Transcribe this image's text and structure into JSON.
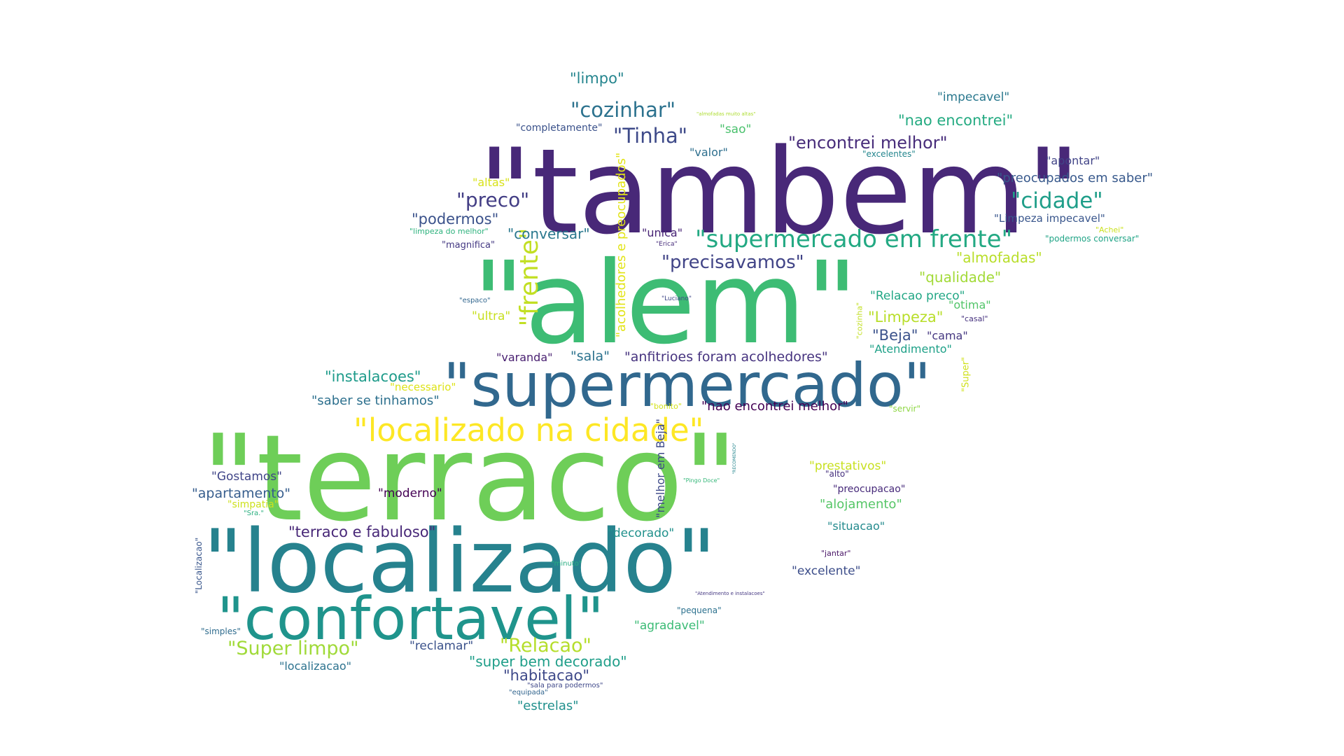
{
  "palette": {
    "dark_purple": "#482878",
    "indigo": "#3e4a89",
    "blue": "#31688e",
    "teal": "#26828e",
    "green_teal": "#1f9e89",
    "green": "#35b779",
    "light_green": "#6ece58",
    "yellow_green": "#b5de2b",
    "yellow": "#fde725"
  },
  "words": [
    {
      "text": "\"tambem\"",
      "color": "#482878"
    },
    {
      "text": "\"alem\"",
      "color": "#3dbc74"
    },
    {
      "text": "\"terraco\"",
      "color": "#6ece58"
    },
    {
      "text": "\"localizado\"",
      "color": "#26828e"
    },
    {
      "text": "\"supermercado\"",
      "color": "#31688e"
    },
    {
      "text": "\"confortavel\"",
      "color": "#1f948c"
    },
    {
      "text": "\"localizado na cidade\"",
      "color": "#fde725"
    },
    {
      "text": "\"supermercado em frente\"",
      "color": "#23a983"
    },
    {
      "text": "\"frente\"",
      "color": "#c2df23"
    },
    {
      "text": "\"cozinhar\"",
      "color": "#2c728e"
    },
    {
      "text": "\"Tinha\"",
      "color": "#3e4a89"
    },
    {
      "text": "\"encontrei melhor\"",
      "color": "#472c7a"
    },
    {
      "text": "\"cidade\"",
      "color": "#1f9e89"
    },
    {
      "text": "\"preco\"",
      "color": "#433e85"
    },
    {
      "text": "\"precisavamos\"",
      "color": "#414487"
    },
    {
      "text": "\"Relacao\"",
      "color": "#b5de2b"
    },
    {
      "text": "\"Super limpo\"",
      "color": "#a0da39"
    },
    {
      "text": "\"limpo\"",
      "color": "#25858e"
    },
    {
      "text": "\"impecavel\"",
      "color": "#2a788e"
    },
    {
      "text": "\"nao encontrei\"",
      "color": "#25ab82"
    },
    {
      "text": "\"completamente\"",
      "color": "#3b528b"
    },
    {
      "text": "\"almofadas muito altas\"",
      "color": "#addc30"
    },
    {
      "text": "\"sao\"",
      "color": "#4ac16d"
    },
    {
      "text": "\"valor\"",
      "color": "#2e6f8e"
    },
    {
      "text": "\"excelentes\"",
      "color": "#24868e"
    },
    {
      "text": "\"apontar\"",
      "color": "#414487"
    },
    {
      "text": "\"preocupados em saber\"",
      "color": "#38598c"
    },
    {
      "text": "\"altas\"",
      "color": "#d8e219"
    },
    {
      "text": "\"acolhedores e preocupados\"",
      "color": "#e2e418"
    },
    {
      "text": "\"podermos\"",
      "color": "#3b528b"
    },
    {
      "text": "\"Limpeza impecavel\"",
      "color": "#39568c"
    },
    {
      "text": "\"limpeza do melhor\"",
      "color": "#2db27d"
    },
    {
      "text": "\"conversar\"",
      "color": "#2a788e"
    },
    {
      "text": "\"unica\"",
      "color": "#482475"
    },
    {
      "text": "\"Achei\"",
      "color": "#cae11f"
    },
    {
      "text": "\"podermos conversar\"",
      "color": "#20a486"
    },
    {
      "text": "\"magnifica\"",
      "color": "#443983"
    },
    {
      "text": "\"Erica\"",
      "color": "#472d7b"
    },
    {
      "text": "\"almofadas\"",
      "color": "#b8de29"
    },
    {
      "text": "\"qualidade\"",
      "color": "#a2da37"
    },
    {
      "text": "\"Relacao preco\"",
      "color": "#22a785"
    },
    {
      "text": "\"otima\"",
      "color": "#52c569"
    },
    {
      "text": "\"espaco\"",
      "color": "#31668e"
    },
    {
      "text": "\"Luciano\"",
      "color": "#3f4788"
    },
    {
      "text": "\"cozinha\"",
      "color": "#c2df23"
    },
    {
      "text": "\"ultra\"",
      "color": "#c8e020"
    },
    {
      "text": "\"Limpeza\"",
      "color": "#b8de29"
    },
    {
      "text": "\"casal\"",
      "color": "#46327e"
    },
    {
      "text": "\"Beja\"",
      "color": "#3b528b"
    },
    {
      "text": "\"cama\"",
      "color": "#453781"
    },
    {
      "text": "\"Atendimento\"",
      "color": "#1fa188"
    },
    {
      "text": "\"varanda\"",
      "color": "#481f70"
    },
    {
      "text": "\"sala\"",
      "color": "#2c728e"
    },
    {
      "text": "\"anfitrioes foram acolhedores\"",
      "color": "#46337f"
    },
    {
      "text": "\"Super\"",
      "color": "#d0e11c"
    },
    {
      "text": "\"instalacoes\"",
      "color": "#1e9b8a"
    },
    {
      "text": "\"necessario\"",
      "color": "#dde318"
    },
    {
      "text": "\"saber se tinhamos\"",
      "color": "#2d708e"
    },
    {
      "text": "\"bonito\"",
      "color": "#d2e21b"
    },
    {
      "text": "\"nao encontrei melhor\"",
      "color": "#440154"
    },
    {
      "text": "\"servir\"",
      "color": "#8fd744"
    },
    {
      "text": "\"melhor em Beja\"",
      "color": "#3e4a89"
    },
    {
      "text": "\"RECOMENDO\"",
      "color": "#24868e"
    },
    {
      "text": "\"prestativos\"",
      "color": "#c8e020"
    },
    {
      "text": "\"alto\"",
      "color": "#46307e"
    },
    {
      "text": "\"Gostamos\"",
      "color": "#404588"
    },
    {
      "text": "\"apartamento\"",
      "color": "#365d8d"
    },
    {
      "text": "\"moderno\"",
      "color": "#440154"
    },
    {
      "text": "\"Pingo Doce\"",
      "color": "#35b779"
    },
    {
      "text": "\"preocupacao\"",
      "color": "#472a7a"
    },
    {
      "text": "\"alojamento\"",
      "color": "#56c667"
    },
    {
      "text": "\"simpatia\"",
      "color": "#cde11d"
    },
    {
      "text": "\"Sra.\"",
      "color": "#29af7f"
    },
    {
      "text": "\"terraco e fabuloso\"",
      "color": "#482878"
    },
    {
      "text": "\"decorado\"",
      "color": "#21918c"
    },
    {
      "text": "\"situacao\"",
      "color": "#238a8d"
    },
    {
      "text": "\"Localizacao\"",
      "color": "#39568c"
    },
    {
      "text": "\"jantar\"",
      "color": "#471365"
    },
    {
      "text": "\"minuto\"",
      "color": "#27ad81"
    },
    {
      "text": "\"excelente\"",
      "color": "#3d4e8a"
    },
    {
      "text": "\"Atendimento e instalacoes\"",
      "color": "#453882"
    },
    {
      "text": "\"pequena\"",
      "color": "#2c718e"
    },
    {
      "text": "\"agradavel\"",
      "color": "#3bbb75"
    },
    {
      "text": "\"simples\"",
      "color": "#2f6c8e"
    },
    {
      "text": "\"reclamar\"",
      "color": "#3b528b"
    },
    {
      "text": "\"super bem decorado\"",
      "color": "#1f9e89"
    },
    {
      "text": "\"localizacao\"",
      "color": "#2c728e"
    },
    {
      "text": "\"habitacao\"",
      "color": "#3e4989"
    },
    {
      "text": "\"sala para podermos\"",
      "color": "#3f4889"
    },
    {
      "text": "\"equipada\"",
      "color": "#32658e"
    },
    {
      "text": "\"estrelas\"",
      "color": "#21908d"
    }
  ]
}
